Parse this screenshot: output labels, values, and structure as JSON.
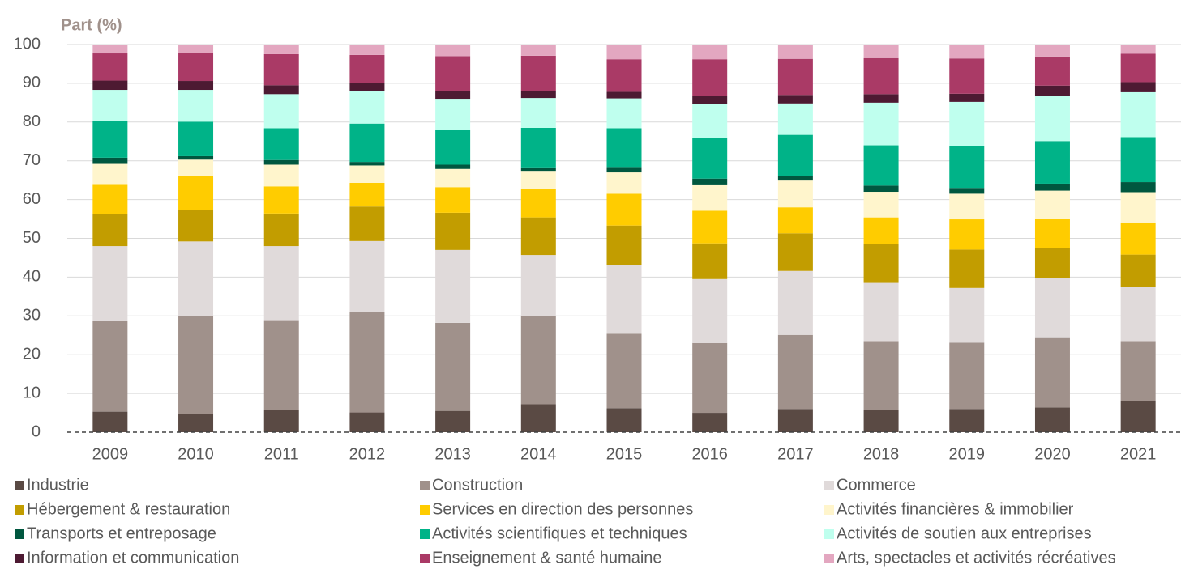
{
  "chart_data": {
    "type": "stacked_bar",
    "y_label": "Part (%)",
    "categories": [
      "2009",
      "2010",
      "2011",
      "2012",
      "2013",
      "2014",
      "2015",
      "2016",
      "2017",
      "2018",
      "2019",
      "2020",
      "2021"
    ],
    "ylim": [
      0,
      100
    ],
    "yticks": [
      0,
      10,
      20,
      30,
      40,
      50,
      60,
      70,
      80,
      90,
      100
    ],
    "grid": true,
    "series": [
      {
        "name": "Industrie",
        "color": "#5a4a44",
        "values": [
          5.3,
          4.6,
          5.7,
          5.1,
          5.5,
          7.2,
          6.2,
          5.0,
          6.0,
          5.8,
          6.0,
          6.4,
          8.0
        ]
      },
      {
        "name": "Construction",
        "color": "#a0918b",
        "values": [
          23.4,
          25.4,
          23.2,
          25.9,
          22.7,
          22.7,
          19.2,
          18.0,
          19.1,
          17.7,
          17.1,
          18.1,
          15.5
        ]
      },
      {
        "name": "Commerce",
        "color": "#e0dada",
        "values": [
          19.3,
          19.2,
          19.1,
          18.3,
          18.8,
          15.8,
          17.7,
          16.5,
          16.5,
          15.0,
          14.1,
          15.2,
          13.9
        ]
      },
      {
        "name": "Hébergement & restauration",
        "color": "#c29d00",
        "values": [
          8.3,
          8.1,
          8.4,
          8.9,
          9.6,
          9.7,
          10.2,
          9.2,
          9.7,
          10.0,
          9.9,
          7.9,
          8.4
        ]
      },
      {
        "name": "Services en direction des personnes",
        "color": "#ffcc00",
        "values": [
          7.7,
          8.8,
          7.0,
          6.1,
          6.6,
          7.3,
          8.2,
          8.4,
          6.7,
          6.9,
          7.8,
          7.4,
          8.3
        ]
      },
      {
        "name": "Activités financières & immobilier",
        "color": "#fff5cc",
        "values": [
          5.2,
          4.2,
          5.6,
          4.5,
          4.7,
          4.7,
          5.5,
          6.8,
          6.9,
          6.6,
          6.6,
          7.3,
          7.8
        ]
      },
      {
        "name": "Transports et entreposage",
        "color": "#00573f",
        "values": [
          1.6,
          0.9,
          1.2,
          0.9,
          1.1,
          0.9,
          1.4,
          1.5,
          1.2,
          1.6,
          1.5,
          1.8,
          2.6
        ]
      },
      {
        "name": "Activités scientifiques et techniques",
        "color": "#00b388",
        "values": [
          9.5,
          8.9,
          8.2,
          9.9,
          8.9,
          10.2,
          10.0,
          10.5,
          10.6,
          10.4,
          10.8,
          11.0,
          11.6
        ]
      },
      {
        "name": "Activités de soutien aux entreprises",
        "color": "#bfffee",
        "values": [
          8.0,
          8.2,
          8.8,
          8.4,
          8.1,
          7.7,
          7.7,
          8.7,
          8.1,
          11.0,
          11.4,
          11.6,
          11.6
        ]
      },
      {
        "name": "Information et communication",
        "color": "#4d1a32",
        "values": [
          2.4,
          2.3,
          2.3,
          2.0,
          2.0,
          1.7,
          1.7,
          2.2,
          2.2,
          2.2,
          2.1,
          2.7,
          2.6
        ]
      },
      {
        "name": "Enseignement & santé humaine",
        "color": "#aa3a66",
        "values": [
          7.0,
          7.2,
          8.0,
          7.3,
          9.0,
          9.2,
          8.4,
          9.4,
          9.3,
          9.3,
          9.1,
          7.5,
          7.3
        ]
      },
      {
        "name": "Arts, spectacles et activités récréatives",
        "color": "#e3a7c0",
        "values": [
          2.3,
          2.2,
          2.5,
          2.7,
          3.0,
          2.9,
          3.8,
          3.8,
          3.7,
          3.5,
          3.6,
          3.1,
          2.4
        ]
      }
    ]
  }
}
